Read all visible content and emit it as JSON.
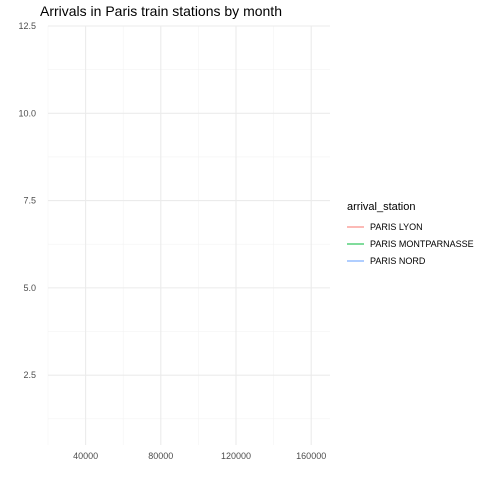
{
  "chart_data": {
    "type": "line",
    "title": "Arrivals in Paris train stations by month",
    "xlabel": "",
    "ylabel": "",
    "x_ticks": [
      40000,
      80000,
      120000,
      160000
    ],
    "x_tick_labels": [
      "40000",
      "80000",
      "120000",
      "160000"
    ],
    "xlim": [
      20000,
      170000
    ],
    "y_ticks": [
      2.5,
      5.0,
      7.5,
      10.0,
      12.5
    ],
    "y_tick_labels": [
      "2.5",
      "5.0",
      "7.5",
      "10.0",
      "12.5"
    ],
    "ylim": [
      0.5,
      12.5
    ],
    "grid": true,
    "legend": {
      "title": "arrival_station",
      "placement": "right"
    },
    "series": [
      {
        "name": "PARIS LYON",
        "color": "#F8766D",
        "points": []
      },
      {
        "name": "PARIS MONTPARNASSE",
        "color": "#00BA38",
        "points": []
      },
      {
        "name": "PARIS NORD",
        "color": "#619CFF",
        "points": []
      }
    ]
  }
}
